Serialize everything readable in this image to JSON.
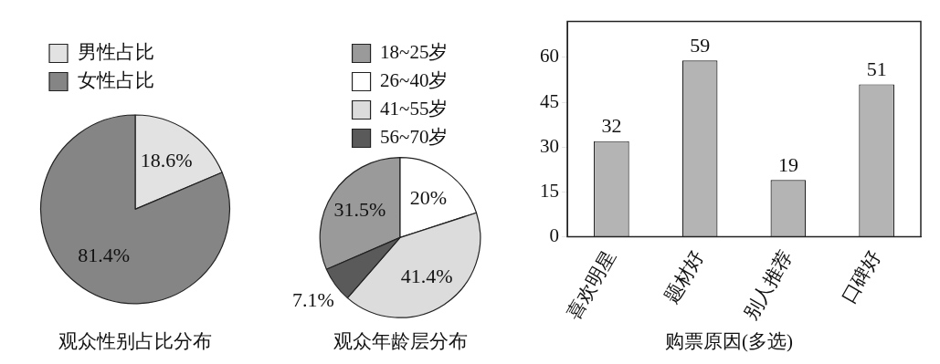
{
  "chart_data": [
    {
      "type": "pie",
      "title": "观众性别占比分布",
      "categories": [
        "男性占比",
        "女性占比"
      ],
      "values": [
        18.6,
        81.4
      ],
      "colors": [
        "#e2e2e2",
        "#858585"
      ],
      "value_labels": [
        "18.6%",
        "81.4%"
      ],
      "legend": "top left"
    },
    {
      "type": "pie",
      "title": "观众年龄层分布",
      "categories": [
        "18~25岁",
        "26~40岁",
        "41~55岁",
        "56~70岁"
      ],
      "values": [
        31.5,
        20,
        41.4,
        7.1
      ],
      "colors": [
        "#9a9a9a",
        "#ffffff",
        "#dcdcdc",
        "#5a5a5a"
      ],
      "value_labels": [
        "31.5%",
        "20%",
        "41.4%",
        "7.1%"
      ],
      "legend": "top"
    },
    {
      "type": "bar",
      "title": "购票原因(多选)",
      "categories": [
        "喜欢明星",
        "题材好",
        "别人推荐",
        "口碑好"
      ],
      "values": [
        32,
        59,
        19,
        51
      ],
      "color": "#b4b4b4",
      "ylim": [
        0,
        72
      ],
      "yticks": [
        0,
        15,
        30,
        45,
        60
      ],
      "data_labels": true,
      "grid": false
    }
  ]
}
